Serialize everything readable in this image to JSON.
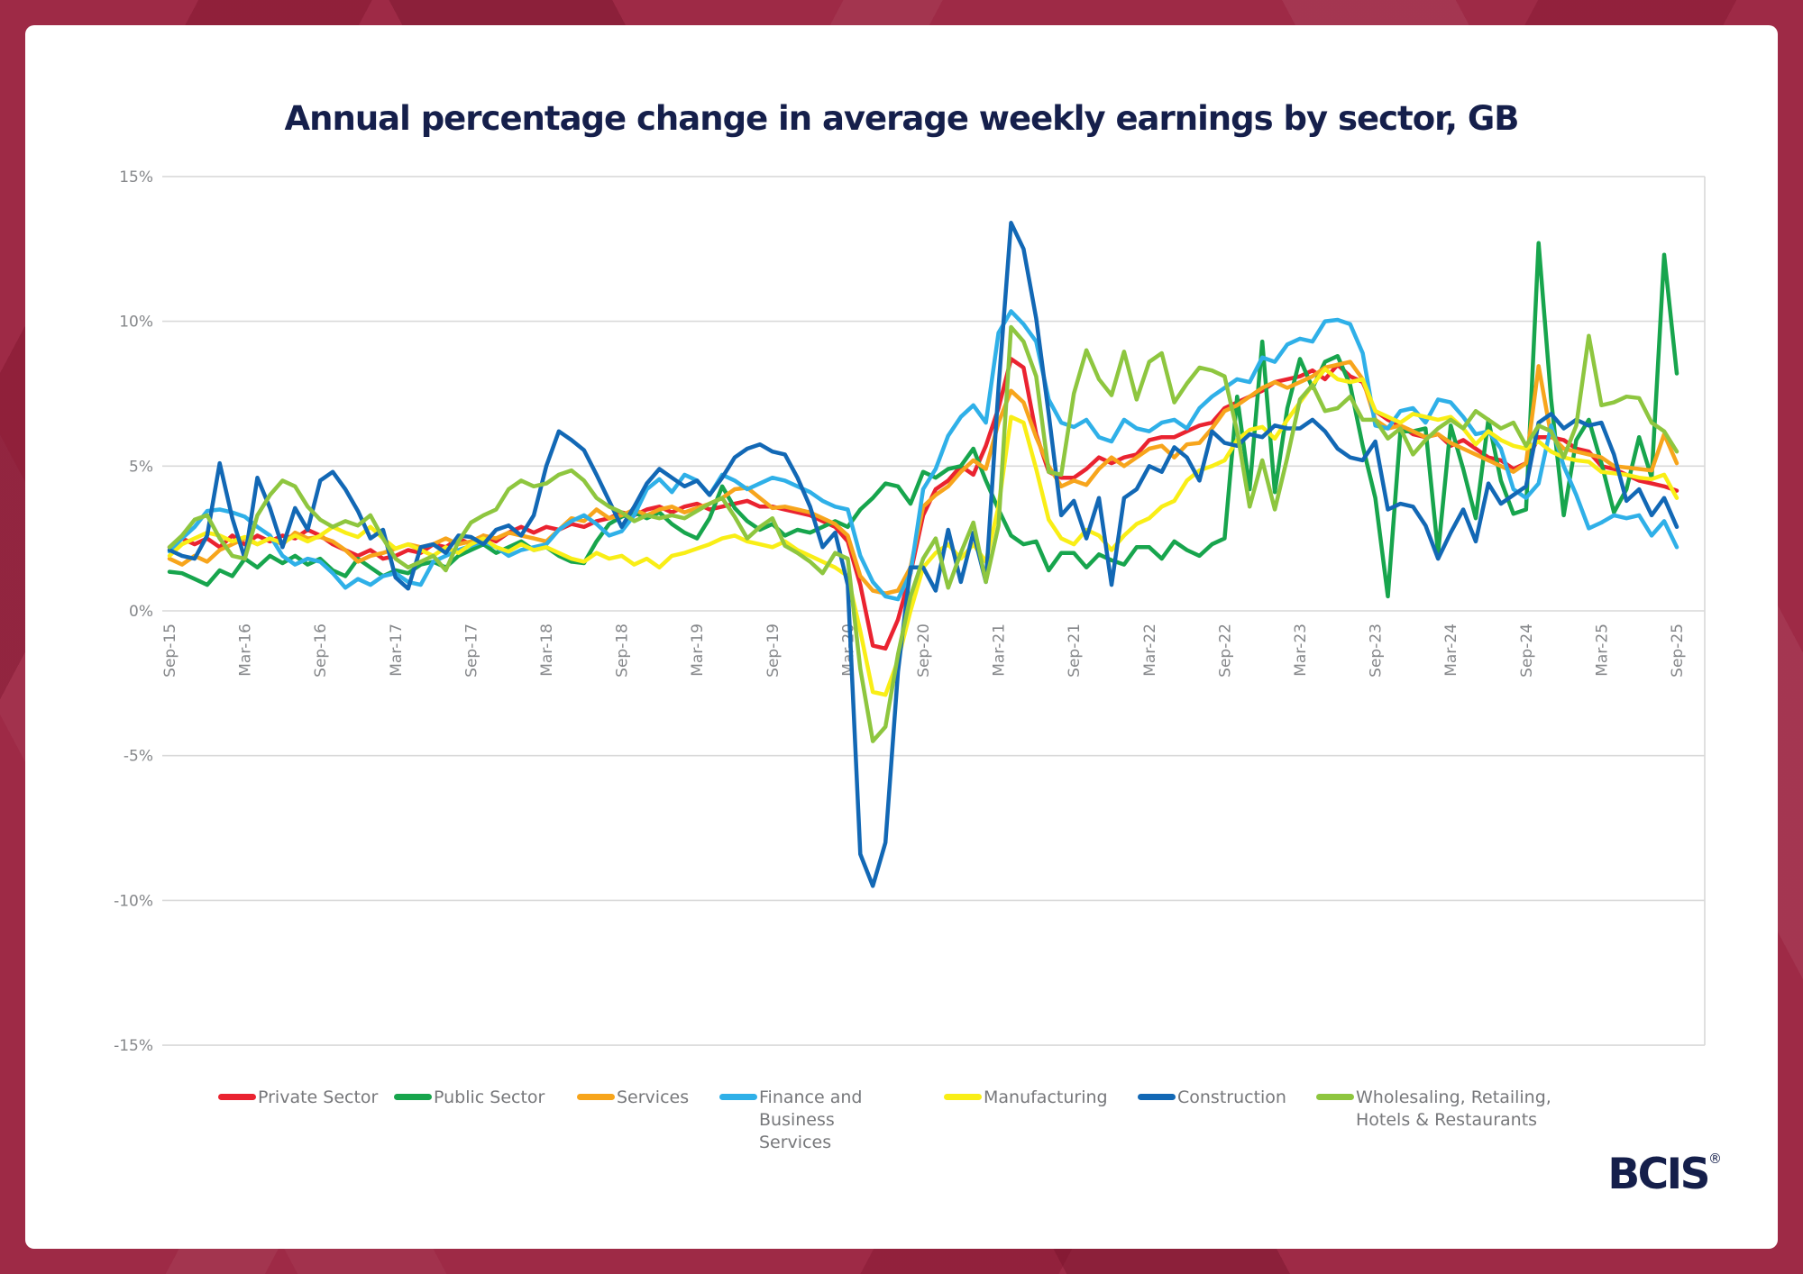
{
  "title": "Annual percentage change in average weekly earnings by sector, GB",
  "logo": {
    "text": "BCIS",
    "registered": "®"
  },
  "colors": {
    "frame": "#9e2a46",
    "panel": "#ffffff",
    "title_text": "#151f4b",
    "axis_text": "#85878a",
    "gridline": "#d9d9d9",
    "legend_text": "#77787b"
  },
  "chart_data": {
    "type": "line",
    "title": "Annual percentage change in average weekly earnings by sector, GB",
    "xlabel": "",
    "ylabel": "",
    "ylim": [
      -15,
      15
    ],
    "grid": "horizontal",
    "legend_position": "bottom",
    "x_months_start": "Sep-15",
    "x_months_end": "Sep-25",
    "x_tick_labels": [
      "Sep-15",
      "Mar-16",
      "Sep-16",
      "Mar-17",
      "Sep-17",
      "Mar-18",
      "Sep-18",
      "Mar-19",
      "Sep-19",
      "Mar-20",
      "Sep-20",
      "Mar-21",
      "Sep-21",
      "Mar-22",
      "Sep-22",
      "Mar-23",
      "Sep-23",
      "Mar-24",
      "Sep-24",
      "Mar-25",
      "Sep-25"
    ],
    "y_tick_labels": [
      "15%",
      "10%",
      "5%",
      "0%",
      "-5%",
      "-10%",
      "-15%"
    ],
    "y_tick_values": [
      15,
      10,
      5,
      0,
      -5,
      -10,
      -15
    ],
    "series": [
      {
        "name": "Private Sector",
        "color": "#ea2330",
        "values": [
          2.2,
          2.5,
          2.3,
          2.5,
          2.2,
          2.6,
          2.3,
          2.6,
          2.4,
          2.6,
          2.5,
          2.8,
          2.6,
          2.3,
          2.1,
          1.9,
          2.1,
          1.8,
          1.9,
          2.1,
          2.0,
          2.3,
          2.2,
          2.5,
          2.3,
          2.6,
          2.4,
          2.7,
          2.9,
          2.7,
          2.9,
          2.8,
          3.0,
          2.9,
          3.1,
          3.2,
          3.4,
          3.3,
          3.5,
          3.6,
          3.4,
          3.6,
          3.7,
          3.5,
          3.6,
          3.7,
          3.8,
          3.6,
          3.6,
          3.5,
          3.4,
          3.3,
          3.1,
          2.9,
          2.4,
          0.9,
          -1.2,
          -1.3,
          -0.3,
          1.3,
          3.3,
          4.2,
          4.5,
          5.0,
          4.7,
          5.7,
          7.0,
          8.7,
          8.4,
          6.1,
          4.8,
          4.6,
          4.6,
          4.9,
          5.3,
          5.1,
          5.3,
          5.4,
          5.9,
          6.0,
          6.0,
          6.2,
          6.4,
          6.5,
          7.0,
          7.2,
          7.4,
          7.6,
          7.9,
          8.0,
          8.1,
          8.3,
          8.0,
          8.5,
          8.1,
          7.9,
          6.9,
          6.6,
          6.4,
          6.1,
          6.0,
          6.1,
          5.7,
          5.9,
          5.6,
          5.3,
          5.2,
          4.9,
          5.1,
          6.0,
          6.0,
          5.9,
          5.6,
          5.5,
          5.0,
          4.9,
          4.7,
          4.5,
          4.4,
          4.3,
          4.15
        ]
      },
      {
        "name": "Public Sector",
        "color": "#17a54d",
        "values": [
          1.35,
          1.3,
          1.1,
          0.9,
          1.4,
          1.2,
          1.8,
          1.5,
          1.9,
          1.65,
          1.9,
          1.6,
          1.8,
          1.4,
          1.2,
          1.8,
          1.5,
          1.2,
          1.4,
          1.3,
          1.6,
          1.7,
          1.5,
          1.9,
          2.1,
          2.3,
          2.0,
          2.2,
          2.4,
          2.1,
          2.2,
          1.9,
          1.7,
          1.65,
          2.4,
          3.0,
          3.25,
          3.4,
          3.2,
          3.4,
          3.0,
          2.7,
          2.5,
          3.2,
          4.3,
          3.55,
          3.1,
          2.8,
          3.0,
          2.6,
          2.8,
          2.7,
          2.9,
          3.1,
          2.9,
          3.5,
          3.9,
          4.4,
          4.3,
          3.7,
          4.8,
          4.6,
          4.9,
          5.0,
          5.6,
          4.5,
          3.5,
          2.6,
          2.3,
          2.4,
          1.4,
          2.0,
          2.0,
          1.5,
          1.95,
          1.75,
          1.6,
          2.2,
          2.2,
          1.8,
          2.4,
          2.1,
          1.9,
          2.3,
          2.5,
          7.4,
          4.2,
          9.3,
          4.1,
          7.0,
          8.7,
          7.7,
          8.6,
          8.8,
          7.8,
          5.7,
          3.9,
          0.5,
          6.2,
          6.2,
          6.3,
          2.0,
          6.4,
          4.9,
          3.2,
          6.6,
          4.5,
          3.35,
          3.5,
          12.7,
          7.3,
          3.3,
          5.9,
          6.6,
          5.1,
          3.4,
          4.2,
          6.0,
          4.6,
          12.3,
          8.2
        ]
      },
      {
        "name": "Services",
        "color": "#f7a51c",
        "values": [
          1.8,
          1.6,
          1.9,
          1.7,
          2.1,
          2.3,
          2.5,
          2.3,
          2.5,
          2.3,
          2.7,
          2.5,
          2.55,
          2.4,
          2.1,
          1.7,
          1.9,
          2.0,
          2.15,
          2.3,
          2.2,
          2.3,
          2.5,
          2.3,
          2.4,
          2.6,
          2.5,
          2.7,
          2.6,
          2.5,
          2.4,
          2.8,
          3.2,
          3.1,
          3.5,
          3.2,
          3.3,
          3.5,
          3.3,
          3.5,
          3.6,
          3.4,
          3.55,
          3.7,
          3.9,
          4.2,
          4.25,
          3.9,
          3.55,
          3.6,
          3.5,
          3.4,
          3.2,
          3.0,
          2.6,
          1.2,
          0.7,
          0.6,
          0.7,
          1.5,
          3.6,
          4.0,
          4.3,
          4.8,
          5.2,
          4.9,
          6.5,
          7.6,
          7.2,
          6.0,
          5.0,
          4.3,
          4.5,
          4.35,
          4.9,
          5.3,
          5.0,
          5.3,
          5.6,
          5.7,
          5.3,
          5.75,
          5.8,
          6.3,
          6.9,
          7.1,
          7.4,
          7.7,
          7.9,
          7.7,
          7.9,
          8.1,
          8.4,
          8.5,
          8.6,
          8.0,
          6.6,
          6.3,
          6.4,
          6.2,
          6.0,
          6.1,
          5.8,
          5.6,
          5.4,
          5.2,
          5.0,
          4.8,
          5.1,
          8.45,
          6.05,
          5.6,
          5.5,
          5.4,
          5.3,
          5.0,
          4.95,
          4.9,
          4.85,
          6.1,
          5.1
        ]
      },
      {
        "name": "Finance and Business Services",
        "color": "#2fb0e8",
        "values": [
          2.05,
          2.5,
          2.9,
          3.45,
          3.5,
          3.4,
          3.25,
          2.9,
          2.6,
          1.9,
          1.6,
          1.8,
          1.7,
          1.3,
          0.8,
          1.1,
          0.9,
          1.2,
          1.3,
          1.0,
          0.9,
          1.7,
          1.9,
          2.1,
          2.25,
          2.4,
          2.2,
          1.9,
          2.1,
          2.2,
          2.3,
          2.8,
          3.1,
          3.3,
          3.0,
          2.6,
          2.75,
          3.3,
          4.2,
          4.55,
          4.1,
          4.7,
          4.5,
          4.0,
          4.7,
          4.5,
          4.2,
          4.4,
          4.6,
          4.5,
          4.3,
          4.1,
          3.8,
          3.6,
          3.5,
          1.9,
          1.0,
          0.5,
          0.4,
          1.3,
          4.2,
          4.9,
          6.05,
          6.7,
          7.1,
          6.5,
          9.6,
          10.35,
          9.9,
          9.3,
          7.3,
          6.5,
          6.35,
          6.6,
          6.0,
          5.85,
          6.6,
          6.3,
          6.2,
          6.5,
          6.6,
          6.3,
          7.0,
          7.4,
          7.7,
          8.0,
          7.9,
          8.75,
          8.6,
          9.2,
          9.4,
          9.3,
          10.0,
          10.05,
          9.9,
          8.9,
          6.4,
          6.3,
          6.9,
          7.0,
          6.5,
          7.3,
          7.2,
          6.7,
          6.1,
          6.2,
          5.6,
          4.2,
          3.9,
          4.4,
          6.4,
          5.0,
          4.0,
          2.85,
          3.05,
          3.3,
          3.2,
          3.3,
          2.6,
          3.1,
          2.2
        ]
      },
      {
        "name": "Manufacturing",
        "color": "#f9ee16",
        "values": [
          1.9,
          2.3,
          2.5,
          2.7,
          2.6,
          2.4,
          2.55,
          2.3,
          2.5,
          2.35,
          2.6,
          2.4,
          2.6,
          2.9,
          2.7,
          2.55,
          2.9,
          2.5,
          2.15,
          2.3,
          2.1,
          1.9,
          2.2,
          2.0,
          2.3,
          2.5,
          2.2,
          2.05,
          2.3,
          2.1,
          2.2,
          2.0,
          1.8,
          1.7,
          2.0,
          1.8,
          1.9,
          1.6,
          1.8,
          1.5,
          1.9,
          2.0,
          2.15,
          2.3,
          2.5,
          2.6,
          2.4,
          2.3,
          2.2,
          2.4,
          2.1,
          1.9,
          1.7,
          1.5,
          1.2,
          -0.7,
          -2.8,
          -2.9,
          -1.7,
          0.0,
          1.5,
          2.0,
          2.3,
          1.8,
          2.3,
          1.7,
          3.6,
          6.7,
          6.5,
          4.9,
          3.15,
          2.5,
          2.3,
          2.8,
          2.6,
          2.1,
          2.6,
          3.0,
          3.2,
          3.6,
          3.8,
          4.5,
          4.85,
          5.0,
          5.2,
          5.9,
          6.25,
          6.35,
          5.95,
          6.6,
          7.2,
          7.8,
          8.35,
          8.0,
          7.9,
          8.0,
          6.9,
          6.7,
          6.5,
          6.8,
          6.7,
          6.6,
          6.7,
          6.3,
          5.75,
          6.2,
          5.9,
          5.7,
          5.6,
          5.85,
          5.5,
          5.3,
          5.2,
          5.15,
          4.8,
          4.75,
          4.7,
          4.6,
          4.55,
          4.7,
          3.9
        ]
      },
      {
        "name": "Construction",
        "color": "#1268b5",
        "values": [
          2.1,
          1.9,
          1.8,
          2.6,
          5.1,
          3.2,
          1.8,
          4.6,
          3.55,
          2.2,
          3.55,
          2.8,
          4.5,
          4.8,
          4.2,
          3.45,
          2.5,
          2.8,
          1.15,
          0.77,
          2.2,
          2.3,
          2.0,
          2.6,
          2.55,
          2.3,
          2.8,
          2.95,
          2.6,
          3.3,
          5.0,
          6.2,
          5.9,
          5.55,
          4.7,
          3.8,
          2.9,
          3.6,
          4.4,
          4.9,
          4.6,
          4.3,
          4.5,
          4.0,
          4.6,
          5.3,
          5.6,
          5.75,
          5.5,
          5.4,
          4.6,
          3.6,
          2.2,
          2.7,
          0.9,
          -8.4,
          -9.5,
          -8.0,
          -2.1,
          1.5,
          1.5,
          0.7,
          2.8,
          1.0,
          2.7,
          1.0,
          7.7,
          13.4,
          12.5,
          10.1,
          6.8,
          3.3,
          3.8,
          2.5,
          3.9,
          0.9,
          3.9,
          4.2,
          5.0,
          4.8,
          5.65,
          5.3,
          4.5,
          6.2,
          5.8,
          5.7,
          6.1,
          6.0,
          6.4,
          6.3,
          6.3,
          6.6,
          6.2,
          5.6,
          5.3,
          5.2,
          5.85,
          3.5,
          3.7,
          3.6,
          2.95,
          1.8,
          2.7,
          3.5,
          2.4,
          4.4,
          3.7,
          4.0,
          4.3,
          6.5,
          6.8,
          6.3,
          6.6,
          6.4,
          6.5,
          5.4,
          3.8,
          4.2,
          3.3,
          3.9,
          2.9
        ]
      },
      {
        "name": "Wholesaling, Retailing, Hotels & Restaurants",
        "color": "#8ec63f",
        "values": [
          2.2,
          2.6,
          3.15,
          3.3,
          2.5,
          1.9,
          1.8,
          3.3,
          4.0,
          4.5,
          4.3,
          3.6,
          3.15,
          2.9,
          3.1,
          2.95,
          3.3,
          2.5,
          1.8,
          1.5,
          1.7,
          1.9,
          1.4,
          2.4,
          3.05,
          3.3,
          3.5,
          4.2,
          4.5,
          4.3,
          4.4,
          4.7,
          4.85,
          4.5,
          3.9,
          3.6,
          3.4,
          3.1,
          3.3,
          3.2,
          3.3,
          3.2,
          3.45,
          3.7,
          3.9,
          3.25,
          2.5,
          2.9,
          3.2,
          2.25,
          2.0,
          1.7,
          1.3,
          2.0,
          1.8,
          -2.0,
          -4.5,
          -4.0,
          -1.5,
          0.5,
          1.8,
          2.5,
          0.8,
          2.0,
          3.05,
          1.0,
          2.95,
          9.8,
          9.3,
          8.1,
          4.8,
          4.7,
          7.5,
          9.0,
          8.0,
          7.45,
          8.95,
          7.3,
          8.6,
          8.9,
          7.2,
          7.85,
          8.4,
          8.3,
          8.1,
          6.2,
          3.6,
          5.2,
          3.5,
          5.3,
          7.3,
          7.8,
          6.9,
          7.0,
          7.4,
          6.6,
          6.6,
          5.95,
          6.3,
          5.4,
          5.9,
          6.3,
          6.6,
          6.3,
          6.9,
          6.6,
          6.3,
          6.5,
          5.7,
          6.4,
          6.2,
          5.3,
          6.4,
          9.5,
          7.1,
          7.2,
          7.4,
          7.35,
          6.5,
          6.2,
          5.5
        ]
      }
    ]
  }
}
